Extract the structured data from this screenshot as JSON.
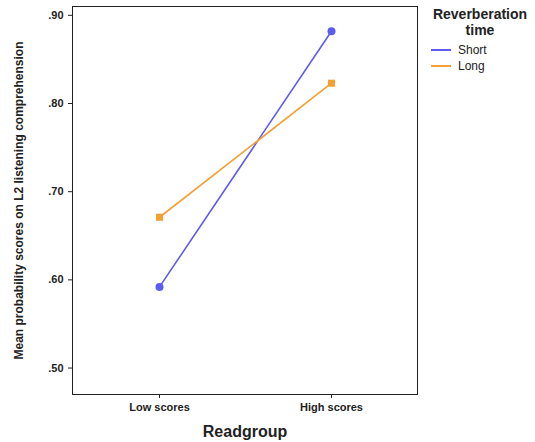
{
  "chart_data": {
    "type": "line",
    "x_label": "Readgroup",
    "y_label": "Mean probability scores on L2 listening comprehension",
    "categories": [
      "Low scores",
      "High scores"
    ],
    "series": [
      {
        "name": "Short",
        "color": "#5c5cf2",
        "marker": "circle",
        "values": [
          0.592,
          0.882
        ]
      },
      {
        "name": "Long",
        "color": "#f5a033",
        "marker": "square",
        "values": [
          0.671,
          0.823
        ]
      }
    ],
    "legend_title": "Reverberation time",
    "legend": "right",
    "ylim": [
      0.47,
      0.91
    ],
    "yticks": [
      {
        "value": 0.5,
        "label": ".50"
      },
      {
        "value": 0.6,
        "label": ".60"
      },
      {
        "value": 0.7,
        "label": ".70"
      },
      {
        "value": 0.8,
        "label": ".80"
      },
      {
        "value": 0.9,
        "label": ".90"
      }
    ],
    "grid": false
  }
}
